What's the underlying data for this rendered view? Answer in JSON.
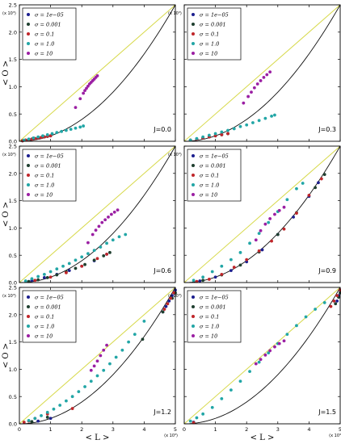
{
  "figure": {
    "ylabel": "< O >",
    "xlabel": "< L >",
    "y_multiplier": "(x 10³)",
    "x_multiplier": "(x 10³)",
    "x_ticks": [
      "0",
      "1",
      "2",
      "3",
      "4",
      "5"
    ],
    "y_ticks": [
      "0.0",
      "0.5",
      "1.0",
      "1.5",
      "2.0",
      "2.5"
    ]
  },
  "colors": {
    "identity_line": "#d7d94a",
    "bound_curve": "#111111",
    "series": [
      "#1c1f8f",
      "#1f3f2f",
      "#c0262a",
      "#22a6a6",
      "#9b1fa3"
    ]
  },
  "legend_labels": [
    "σ = 1e−05",
    "σ = 0.001",
    "σ = 0.1",
    "σ = 1.0",
    "σ = 10"
  ],
  "chart_data": [
    {
      "type": "scatter",
      "annotation": "J=0.0",
      "xlim": [
        0,
        5
      ],
      "ylim": [
        0,
        2.5
      ],
      "x_unit": "x 10^3",
      "y_unit": "x 10^3",
      "reference_curves": [
        "y = x/2",
        "y = x^2/10"
      ],
      "series": [
        {
          "name": "σ = 1e−05",
          "x": [
            0.1,
            0.2,
            0.3,
            0.4,
            0.5,
            0.6,
            0.7,
            0.8,
            0.9,
            1.0
          ],
          "y": [
            0.01,
            0.02,
            0.03,
            0.04,
            0.05,
            0.06,
            0.07,
            0.08,
            0.09,
            0.1
          ]
        },
        {
          "name": "σ = 0.001",
          "x": [
            0.1,
            0.2,
            0.3,
            0.4,
            0.5,
            0.6,
            0.7,
            0.8,
            0.9,
            1.0
          ],
          "y": [
            0.01,
            0.02,
            0.03,
            0.04,
            0.05,
            0.06,
            0.07,
            0.08,
            0.09,
            0.1
          ]
        },
        {
          "name": "σ = 0.1",
          "x": [
            0.1,
            0.2,
            0.3,
            0.4,
            0.5,
            0.6,
            0.7,
            0.8,
            0.9,
            1.0
          ],
          "y": [
            0.01,
            0.02,
            0.03,
            0.04,
            0.05,
            0.06,
            0.07,
            0.08,
            0.09,
            0.1
          ]
        },
        {
          "name": "σ = 1.0",
          "x": [
            0.15,
            0.3,
            0.45,
            0.6,
            0.75,
            0.9,
            1.05,
            1.2,
            1.35,
            1.5,
            1.65,
            1.8,
            1.95,
            2.05
          ],
          "y": [
            0.02,
            0.04,
            0.06,
            0.08,
            0.1,
            0.12,
            0.14,
            0.16,
            0.18,
            0.2,
            0.22,
            0.24,
            0.26,
            0.28
          ]
        },
        {
          "name": "σ = 10",
          "x": [
            1.8,
            1.95,
            2.05,
            2.1,
            2.15,
            2.2,
            2.25,
            2.3,
            2.35,
            2.4,
            2.45,
            2.5
          ],
          "y": [
            0.62,
            0.78,
            0.88,
            0.93,
            0.97,
            1.01,
            1.05,
            1.08,
            1.11,
            1.14,
            1.17,
            1.2
          ]
        }
      ]
    },
    {
      "type": "scatter",
      "annotation": "J=0.3",
      "xlim": [
        0,
        5
      ],
      "ylim": [
        0,
        2.5
      ],
      "x_unit": "x 10^3",
      "y_unit": "x 10^3",
      "reference_curves": [
        "y = x/2",
        "y = x^2/10"
      ],
      "series": [
        {
          "name": "σ = 1e−05",
          "x": [
            0.2,
            0.4,
            0.6,
            0.8,
            1.0,
            1.2,
            1.4
          ],
          "y": [
            0.02,
            0.04,
            0.06,
            0.08,
            0.1,
            0.12,
            0.14
          ]
        },
        {
          "name": "σ = 0.001",
          "x": [
            0.2,
            0.4,
            0.6,
            0.8,
            1.0,
            1.2,
            1.4
          ],
          "y": [
            0.02,
            0.04,
            0.06,
            0.08,
            0.1,
            0.12,
            0.14
          ]
        },
        {
          "name": "σ = 0.1",
          "x": [
            0.2,
            0.4,
            0.6,
            0.8,
            1.0,
            1.2,
            1.4
          ],
          "y": [
            0.02,
            0.04,
            0.06,
            0.08,
            0.1,
            0.12,
            0.14
          ]
        },
        {
          "name": "σ = 1.0",
          "x": [
            0.2,
            0.4,
            0.6,
            0.8,
            1.0,
            1.2,
            1.4,
            1.6,
            1.8,
            2.0,
            2.2,
            2.4,
            2.6,
            2.8,
            2.9
          ],
          "y": [
            0.02,
            0.05,
            0.08,
            0.11,
            0.14,
            0.17,
            0.2,
            0.23,
            0.27,
            0.3,
            0.34,
            0.38,
            0.42,
            0.46,
            0.48
          ]
        },
        {
          "name": "σ = 10",
          "x": [
            1.9,
            2.05,
            2.15,
            2.25,
            2.35,
            2.45,
            2.55,
            2.65,
            2.75
          ],
          "y": [
            0.7,
            0.82,
            0.9,
            0.98,
            1.05,
            1.11,
            1.17,
            1.22,
            1.27
          ]
        }
      ]
    },
    {
      "type": "scatter",
      "annotation": "J=0.6",
      "xlim": [
        0,
        5
      ],
      "ylim": [
        0,
        2.5
      ],
      "x_unit": "x 10^3",
      "y_unit": "x 10^3",
      "reference_curves": [
        "y = x/2",
        "y = x^2/10"
      ],
      "series": [
        {
          "name": "σ = 1e−05",
          "x": [
            0.4,
            0.8,
            1.2,
            1.6,
            2.0,
            2.4,
            2.8
          ],
          "y": [
            0.04,
            0.09,
            0.15,
            0.22,
            0.3,
            0.4,
            0.52
          ]
        },
        {
          "name": "σ = 0.001",
          "x": [
            0.3,
            0.6,
            0.9,
            1.2,
            1.5,
            1.8,
            2.1,
            2.4,
            2.7,
            2.9
          ],
          "y": [
            0.02,
            0.05,
            0.09,
            0.14,
            0.2,
            0.26,
            0.33,
            0.41,
            0.49,
            0.55
          ]
        },
        {
          "name": "σ = 0.1",
          "x": [
            0.5,
            1.0,
            1.5,
            2.0,
            2.5,
            2.8
          ],
          "y": [
            0.04,
            0.1,
            0.18,
            0.3,
            0.44,
            0.52
          ]
        },
        {
          "name": "σ = 1.0",
          "x": [
            0.2,
            0.4,
            0.6,
            0.8,
            1.0,
            1.2,
            1.4,
            1.6,
            1.8,
            2.0,
            2.2,
            2.4,
            2.6,
            2.8,
            3.0,
            3.2,
            3.4
          ],
          "y": [
            0.03,
            0.07,
            0.11,
            0.15,
            0.2,
            0.25,
            0.3,
            0.35,
            0.41,
            0.47,
            0.53,
            0.59,
            0.65,
            0.72,
            0.78,
            0.84,
            0.88
          ]
        },
        {
          "name": "σ = 10",
          "x": [
            2.2,
            2.35,
            2.45,
            2.55,
            2.65,
            2.75,
            2.85,
            2.95,
            3.05,
            3.15
          ],
          "y": [
            0.73,
            0.88,
            0.96,
            1.03,
            1.1,
            1.15,
            1.2,
            1.25,
            1.29,
            1.33
          ]
        }
      ]
    },
    {
      "type": "scatter",
      "annotation": "J=0.9",
      "xlim": [
        0,
        5
      ],
      "ylim": [
        0,
        2.5
      ],
      "x_unit": "x 10^3",
      "y_unit": "x 10^3",
      "reference_curves": [
        "y = x/2",
        "y = x^2/10"
      ],
      "series": [
        {
          "name": "σ = 1e−05",
          "x": [
            0.5,
            1.0,
            1.5,
            2.0,
            2.5,
            3.0,
            3.5,
            4.0,
            4.3
          ],
          "y": [
            0.03,
            0.1,
            0.22,
            0.38,
            0.6,
            0.88,
            1.2,
            1.58,
            1.83
          ]
        },
        {
          "name": "σ = 0.001",
          "x": [
            0.6,
            1.2,
            1.8,
            2.4,
            3.0,
            3.6,
            4.2,
            4.5
          ],
          "y": [
            0.04,
            0.14,
            0.32,
            0.56,
            0.88,
            1.28,
            1.74,
            1.98
          ]
        },
        {
          "name": "σ = 0.1",
          "x": [
            0.4,
            0.8,
            1.2,
            1.6,
            2.0,
            2.4,
            2.8,
            3.2,
            3.6,
            4.0,
            4.4
          ],
          "y": [
            0.02,
            0.06,
            0.15,
            0.28,
            0.42,
            0.58,
            0.76,
            0.98,
            1.27,
            1.6,
            1.9
          ]
        },
        {
          "name": "σ = 1.0",
          "x": [
            0.3,
            0.6,
            0.9,
            1.2,
            1.5,
            1.8,
            2.1,
            2.4,
            2.7,
            3.0,
            3.3,
            3.6,
            3.8
          ],
          "y": [
            0.04,
            0.1,
            0.2,
            0.3,
            0.42,
            0.55,
            0.72,
            0.9,
            1.1,
            1.3,
            1.52,
            1.72,
            1.82
          ]
        },
        {
          "name": "σ = 10",
          "x": [
            2.3,
            2.45,
            2.6,
            2.75,
            2.9,
            3.05,
            3.2
          ],
          "y": [
            0.78,
            0.95,
            1.07,
            1.17,
            1.25,
            1.32,
            1.38
          ]
        }
      ]
    },
    {
      "type": "scatter",
      "annotation": "J=1.2",
      "xlim": [
        0,
        5
      ],
      "ylim": [
        0,
        2.5
      ],
      "x_unit": "x 10^3",
      "y_unit": "x 10^3",
      "reference_curves": [
        "y = x/2",
        "y = x^2/10"
      ],
      "series": [
        {
          "name": "σ = 1e−05",
          "x": [
            0.6,
            1.0,
            4.6,
            4.7,
            4.8,
            4.9,
            5.0
          ],
          "y": [
            0.05,
            0.1,
            2.05,
            2.15,
            2.25,
            2.35,
            2.45
          ]
        },
        {
          "name": "σ = 0.001",
          "x": [
            0.4,
            0.9,
            3.95,
            4.6,
            4.75,
            4.9,
            5.0
          ],
          "y": [
            0.04,
            0.12,
            1.55,
            2.05,
            2.2,
            2.3,
            2.4
          ]
        },
        {
          "name": "σ = 0.1",
          "x": [
            0.15,
            0.3,
            0.5,
            0.9,
            1.7,
            4.65,
            4.75,
            4.85,
            4.95
          ],
          "y": [
            0.03,
            0.05,
            0.1,
            0.18,
            0.28,
            2.1,
            2.2,
            2.3,
            2.4
          ]
        },
        {
          "name": "σ = 1.0",
          "x": [
            0.3,
            0.5,
            0.7,
            0.9,
            1.1,
            1.3,
            1.5,
            1.7,
            1.9,
            2.1,
            2.3,
            2.5,
            2.7,
            2.9,
            3.1,
            3.3,
            3.5,
            3.7,
            4.0
          ],
          "y": [
            0.06,
            0.1,
            0.15,
            0.21,
            0.27,
            0.34,
            0.42,
            0.5,
            0.59,
            0.68,
            0.78,
            0.88,
            0.98,
            1.1,
            1.22,
            1.35,
            1.5,
            1.64,
            1.88
          ]
        },
        {
          "name": "σ = 10",
          "x": [
            2.3,
            2.4,
            2.5,
            2.6,
            2.7,
            2.8
          ],
          "y": [
            0.98,
            1.06,
            1.15,
            1.25,
            1.35,
            1.44
          ]
        }
      ]
    },
    {
      "type": "scatter",
      "annotation": "J=1.5",
      "xlim": [
        0,
        5
      ],
      "ylim": [
        0,
        2.5
      ],
      "x_unit": "x 10^3",
      "y_unit": "x 10^3",
      "reference_curves": [
        "y = x/2",
        "y = x^2/10"
      ],
      "series": [
        {
          "name": "σ = 1e−05",
          "x": [
            0.3,
            4.9,
            4.95,
            5.0
          ],
          "y": [
            0.03,
            2.25,
            2.35,
            2.45
          ]
        },
        {
          "name": "σ = 0.001",
          "x": [
            0.3,
            4.85,
            4.95,
            5.0
          ],
          "y": [
            0.02,
            2.2,
            2.32,
            2.4
          ]
        },
        {
          "name": "σ = 0.1",
          "x": [
            0.3,
            4.7,
            4.8,
            4.9,
            5.0
          ],
          "y": [
            0.02,
            2.15,
            2.25,
            2.35,
            2.45
          ]
        },
        {
          "name": "σ = 1.0",
          "x": [
            0.2,
            0.4,
            0.6,
            0.9,
            1.2,
            1.5,
            1.8,
            2.1,
            2.4,
            2.7,
            3.0,
            3.3,
            3.6,
            3.9,
            4.2,
            4.5
          ],
          "y": [
            0.05,
            0.11,
            0.18,
            0.3,
            0.46,
            0.62,
            0.78,
            0.96,
            1.13,
            1.3,
            1.47,
            1.64,
            1.8,
            1.96,
            2.1,
            2.22
          ]
        },
        {
          "name": "σ = 10",
          "x": [
            2.3,
            2.45,
            2.6,
            2.75,
            2.9,
            3.05,
            3.2
          ],
          "y": [
            1.1,
            1.18,
            1.26,
            1.34,
            1.41,
            1.47,
            1.52
          ]
        }
      ]
    }
  ]
}
